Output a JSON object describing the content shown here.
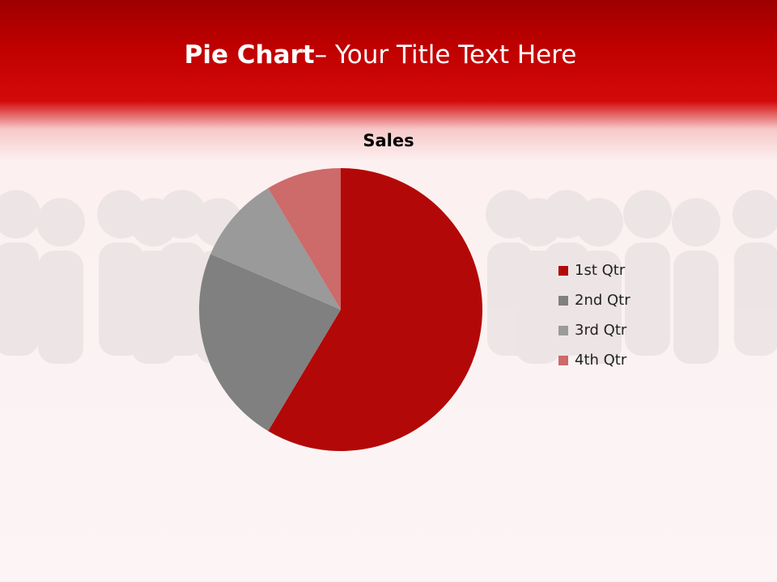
{
  "slide": {
    "title_bold": "Pie Chart",
    "title_rest": "– Your Title Text Here"
  },
  "chart_data": {
    "type": "pie",
    "title": "Sales",
    "categories": [
      "1st Qtr",
      "2nd Qtr",
      "3rd Qtr",
      "4th Qtr"
    ],
    "values": [
      8.2,
      3.2,
      1.4,
      1.2
    ],
    "colors": [
      "#b30808",
      "#808080",
      "#9a9a9a",
      "#cd6a6a"
    ],
    "start_angle": "top, clockwise",
    "legend": "right"
  }
}
